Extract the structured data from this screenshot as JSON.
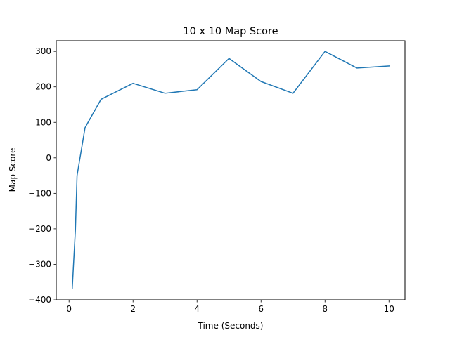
{
  "chart_data": {
    "type": "line",
    "title": "10 x 10 Map Score",
    "xlabel": "Time (Seconds)",
    "ylabel": "Map Score",
    "xlim": [
      -0.4,
      10.5
    ],
    "ylim": [
      -400,
      330
    ],
    "xticks": [
      0,
      2,
      4,
      6,
      8,
      10
    ],
    "yticks": [
      -400,
      -300,
      -200,
      -100,
      0,
      100,
      200,
      300
    ],
    "grid": false,
    "line_color": "#1f77b4",
    "series": [
      {
        "x": [
          0.1,
          0.2,
          0.25,
          0.5,
          1,
          2,
          3,
          4,
          5,
          6,
          7,
          8,
          9,
          10
        ],
        "y": [
          -368,
          -200,
          -50,
          85,
          165,
          210,
          182,
          192,
          280,
          215,
          182,
          300,
          253,
          259
        ]
      }
    ]
  }
}
